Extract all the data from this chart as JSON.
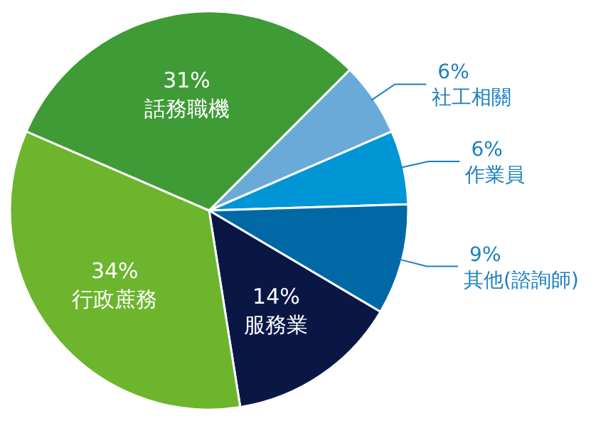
{
  "chart_data": {
    "type": "pie",
    "categories": [
      "社工相關",
      "作業員",
      "其他(諮詢師)",
      "服務業",
      "行政蔗務",
      "話務職機"
    ],
    "values": [
      6,
      6,
      9,
      14,
      34,
      31
    ],
    "value_labels": [
      "6%",
      "6%",
      "9%",
      "14%",
      "34%",
      "31%"
    ],
    "colors": [
      "#6aaad8",
      "#0096d6",
      "#0068a5",
      "#0a1745",
      "#6cb52d",
      "#3e9b35"
    ]
  }
}
